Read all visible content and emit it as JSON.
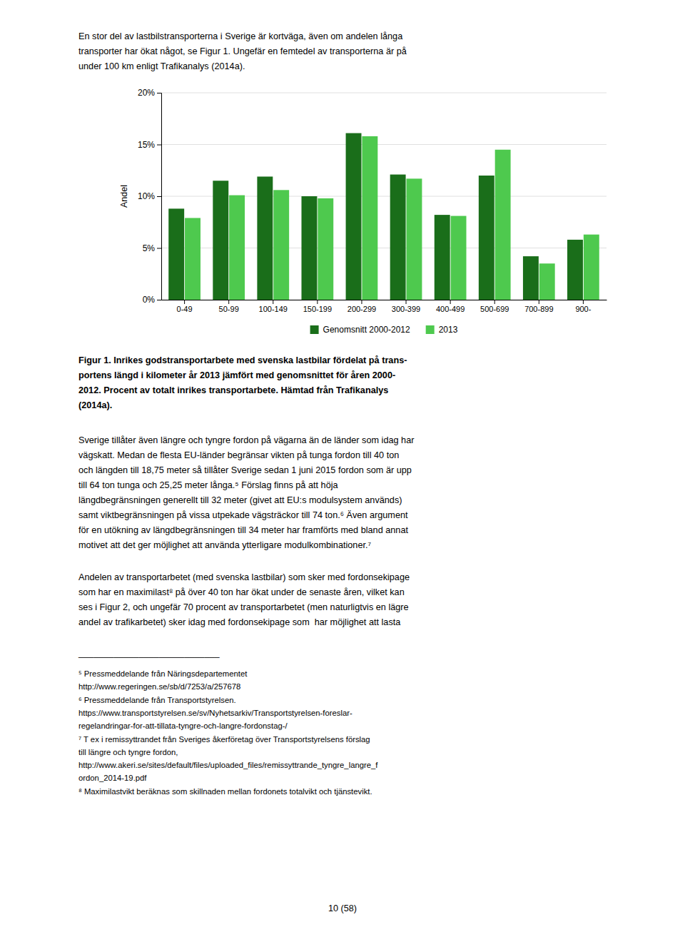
{
  "chart_data": {
    "type": "bar",
    "categories": [
      "0-49",
      "50-99",
      "100-149",
      "150-199",
      "200-299",
      "300-399",
      "400-499",
      "500-699",
      "700-899",
      "900-"
    ],
    "series": [
      {
        "name": "Genomsnitt 2000-2012",
        "color": "#1a6e1a",
        "values": [
          8.8,
          11.5,
          11.9,
          10.0,
          16.1,
          12.1,
          8.2,
          12.0,
          4.2,
          5.8
        ]
      },
      {
        "name": "2013",
        "color": "#4ec94e",
        "values": [
          7.9,
          10.1,
          10.6,
          9.8,
          15.8,
          11.7,
          8.1,
          14.5,
          3.5,
          6.3
        ]
      }
    ],
    "ylabel": "Andel",
    "ylim": [
      0,
      20
    ],
    "yticks": [
      {
        "value": 0,
        "label": "0%"
      },
      {
        "value": 5,
        "label": "5%"
      },
      {
        "value": 10,
        "label": "10%"
      },
      {
        "value": 15,
        "label": "15%"
      },
      {
        "value": 20,
        "label": "20%"
      }
    ],
    "grid": true,
    "legend": "bottom"
  },
  "top_paragraph": [
    "En stor del av lastbilstransporterna i Sverige är kortväga, även om andelen långa",
    "transporter har ökat något, se Figur 1. Ungefär en femtedel av transporterna är på",
    "under 100 km enligt Trafikanalys (2014a)."
  ],
  "caption": [
    "Figur 1. Inrikes godstransportarbete med svenska lastbilar fördelat på trans-",
    "portens längd i kilometer år 2013 jämfört med genomsnittet för åren 2000-",
    "2012. Procent av totalt inrikes transportarbete. Hämtad från Trafikanalys",
    "(2014a)."
  ],
  "body_paragraph_1": [
    "Sverige tillåter även längre och tyngre fordon på vägarna än de länder som idag har",
    "vägskatt. Medan de flesta EU-länder begränsar vikten på tunga fordon till 40 ton",
    "och längden till 18,75 meter så tillåter Sverige sedan 1 juni 2015 fordon som är upp",
    "till 64 ton tunga och 25,25 meter långa.⁵ Förslag finns på att höja",
    "längdbegränsningen generellt till 32 meter (givet att EU:s modulsystem används)",
    "samt viktbegränsningen på vissa utpekade vägsträckor till 74 ton.⁶ Även argument",
    "för en utökning av längdbegränsningen till 34 meter har framförts med bland annat",
    "motivet att det ger möjlighet att använda ytterligare modulkombinationer.⁷"
  ],
  "body_paragraph_2": [
    "Andelen av transportarbetet (med svenska lastbilar) som sker med fordonsekipage",
    "som har en maximilast⁸ på över 40 ton har ökat under de senaste åren, vilket kan",
    "ses i Figur 2, och ungefär 70 procent av transportarbetet (men naturligtvis en lägre",
    "andel av trafikarbetet) sker idag med fordonsekipage som  har möjlighet att lasta"
  ],
  "footnote_rule": "____________________________",
  "footnotes": [
    "⁵ Pressmeddelande från Näringsdepartementet",
    "http://www.regeringen.se/sb/d/7253/a/257678",
    "⁶ Pressmeddelande från Transportstyrelsen.",
    "https://www.transportstyrelsen.se/sv/Nyhetsarkiv/Transportstyrelsen-foreslar-",
    "regelandringar-for-att-tillata-tyngre-och-langre-fordonstag-/",
    "⁷ T ex i remissyttrandet från Sveriges åkerföretag över Transportstyrelsens förslag",
    "till längre och tyngre fordon,",
    "http://www.akeri.se/sites/default/files/uploaded_files/remissyttrande_tyngre_langre_f",
    "ordon_2014-19.pdf",
    "⁸ Maximilastvikt beräknas som skillnaden mellan fordonets totalvikt och tjänstevikt."
  ],
  "page_number": "10 (58)"
}
